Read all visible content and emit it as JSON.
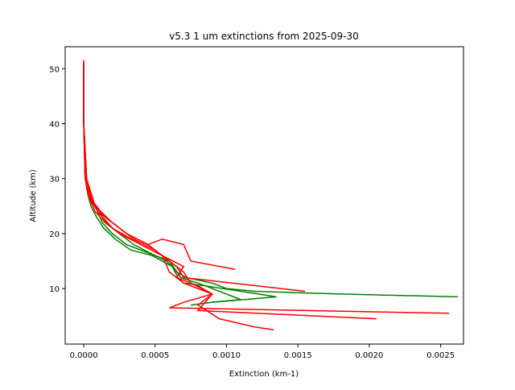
{
  "chart_data": {
    "type": "line",
    "title": "v5.3 1 um extinctions from 2025-09-30",
    "x_label": "Extinction (km-1)",
    "y_label": "Altitude (km)",
    "xlim": [
      -0.00013,
      0.00266
    ],
    "ylim": [
      -0.1,
      54
    ],
    "xticks": [
      {
        "value": 0,
        "label": "0.0000"
      },
      {
        "value": 0.0005,
        "label": "0.0005"
      },
      {
        "value": 0.001,
        "label": "0.0010"
      },
      {
        "value": 0.0015,
        "label": "0.0015"
      },
      {
        "value": 0.002,
        "label": "0.0020"
      },
      {
        "value": 0.0025,
        "label": "0.0025"
      }
    ],
    "yticks": [
      10,
      20,
      30,
      40,
      50
    ],
    "grid": false,
    "series": [
      {
        "color": "#008000",
        "x": [
          0,
          0,
          0,
          1e-05,
          2e-05,
          4e-05,
          6e-05,
          0.0001,
          0.00016,
          0.00025,
          0.00035,
          0.0005,
          0.00058,
          0.00062,
          0.00065,
          0.00072,
          0.0009,
          0.001,
          0.0012,
          0.0018,
          0.00262
        ],
        "y": [
          51.5,
          45,
          40,
          35,
          30,
          28,
          26,
          24,
          22,
          20,
          18,
          16,
          15,
          14,
          13,
          12,
          11,
          10,
          9.5,
          9,
          8.5
        ]
      },
      {
        "color": "#008000",
        "x": [
          0,
          0,
          1e-05,
          3e-05,
          5e-05,
          9e-05,
          0.00014,
          0.00022,
          0.00033,
          0.00048,
          0.00062,
          0.00066,
          0.0007,
          0.00085,
          0.0011,
          0.00135,
          0.0009,
          0.00075
        ],
        "y": [
          51,
          40,
          30,
          27,
          25,
          23,
          21,
          19,
          17,
          16,
          14,
          12,
          11,
          10.5,
          9.5,
          8.5,
          7.5,
          7
        ]
      },
      {
        "color": "#008000",
        "x": [
          0,
          0,
          2e-05,
          5e-05,
          8e-05,
          0.00013,
          0.0002,
          0.0003,
          0.00045,
          0.0006,
          0.00068,
          0.0008,
          0.00095,
          0.0011,
          0.0009
        ],
        "y": [
          50,
          40,
          30,
          27,
          25,
          22,
          20,
          18,
          16.5,
          15,
          12,
          11,
          9.5,
          8,
          7.5
        ]
      },
      {
        "color": "#ff0000",
        "x": [
          0,
          0,
          1e-05,
          3e-05,
          8e-05,
          0.00015,
          0.00025,
          0.0004,
          0.00055,
          0.0007,
          0.00065,
          0.0008,
          0.0009,
          0.0007,
          0.0006,
          0.00256
        ],
        "y": [
          51.5,
          40,
          30,
          27,
          24,
          22,
          20,
          18,
          16,
          14,
          12,
          10.5,
          9,
          7.5,
          6.5,
          5.5
        ]
      },
      {
        "color": "#ff0000",
        "x": [
          0,
          0,
          2e-05,
          6e-05,
          0.00012,
          0.0002,
          0.00035,
          0.0005,
          0.0006,
          0.0007,
          0.00075,
          0.0009,
          0.0008,
          0.00205
        ],
        "y": [
          51,
          40,
          30,
          26,
          24,
          22,
          19,
          17,
          15,
          13,
          11,
          9,
          6,
          4.5
        ]
      },
      {
        "color": "#ff0000",
        "x": [
          0,
          0,
          1e-05,
          5e-05,
          0.0001,
          0.0002,
          0.0003,
          0.00045,
          0.00055,
          0.00065,
          0.0007,
          0.00155
        ],
        "y": [
          50,
          40,
          30,
          26,
          24,
          22,
          20,
          18,
          16,
          14,
          12,
          9.5
        ]
      },
      {
        "color": "#ff0000",
        "x": [
          0,
          0,
          2e-05,
          8e-05,
          0.00015,
          0.0003,
          0.00045,
          0.00055,
          0.0007,
          0.00075,
          0.00106
        ],
        "y": [
          50,
          40,
          30,
          25,
          23,
          20,
          18,
          19,
          18,
          15,
          13.5
        ]
      },
      {
        "color": "#ff0000",
        "x": [
          0,
          0,
          1e-05,
          4e-05,
          0.0001,
          0.0002,
          0.0004,
          0.00055,
          0.0006,
          0.0007,
          0.0009,
          0.0008,
          0.00095,
          0.0012,
          0.00133
        ],
        "y": [
          51,
          40,
          30,
          27,
          24,
          21,
          18,
          16,
          13,
          11,
          9,
          7,
          4.5,
          3,
          2.5
        ]
      }
    ]
  }
}
